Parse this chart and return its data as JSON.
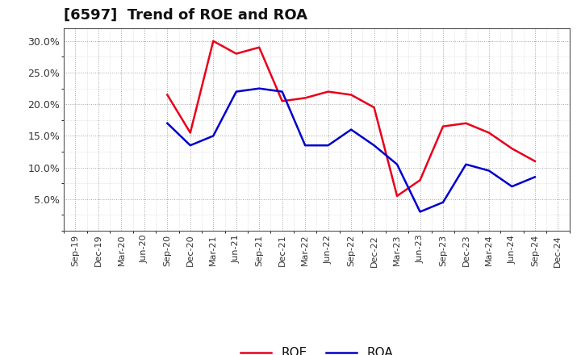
{
  "title": "[6597]  Trend of ROE and ROA",
  "x_labels": [
    "Sep-19",
    "Dec-19",
    "Mar-20",
    "Jun-20",
    "Sep-20",
    "Dec-20",
    "Mar-21",
    "Jun-21",
    "Sep-21",
    "Dec-21",
    "Mar-22",
    "Jun-22",
    "Sep-22",
    "Dec-22",
    "Mar-23",
    "Jun-23",
    "Sep-23",
    "Dec-23",
    "Mar-24",
    "Jun-24",
    "Sep-24",
    "Dec-24"
  ],
  "roe": [
    null,
    null,
    null,
    null,
    21.5,
    15.5,
    30.0,
    28.0,
    29.0,
    20.5,
    21.0,
    22.0,
    21.5,
    19.5,
    5.5,
    8.0,
    16.5,
    17.0,
    15.5,
    13.0,
    11.0,
    null
  ],
  "roa": [
    null,
    null,
    null,
    null,
    17.0,
    13.5,
    15.0,
    22.0,
    22.5,
    22.0,
    13.5,
    13.5,
    16.0,
    13.5,
    10.5,
    3.0,
    4.5,
    10.5,
    9.5,
    7.0,
    8.5,
    null
  ],
  "roe_color": "#e8001c",
  "roa_color": "#0000cc",
  "background_color": "#ffffff",
  "grid_color": "#999999",
  "ylim": [
    0,
    32
  ],
  "yticks": [
    5.0,
    10.0,
    15.0,
    20.0,
    25.0,
    30.0
  ],
  "legend_labels": [
    "ROE",
    "ROA"
  ],
  "title_fontsize": 13,
  "tick_fontsize": 9,
  "xtick_fontsize": 8
}
